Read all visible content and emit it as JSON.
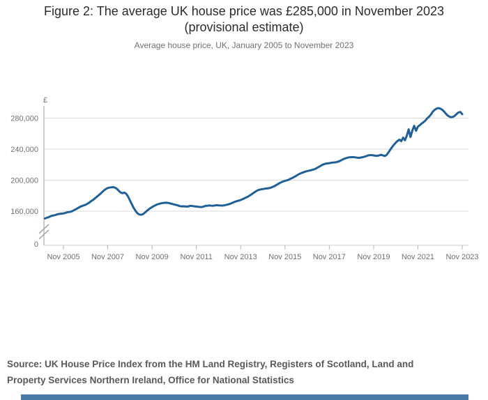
{
  "header": {
    "title_line1": "Figure 2: The average UK house price was £285,000 in November 2023",
    "title_line2": "(provisional estimate)",
    "subtitle": "Average house price, UK, January 2005 to November 2023"
  },
  "source": {
    "line1": "Source: UK House Price Index from the HM Land Registry, Registers of Scotland, Land and",
    "line2": "Property Services Northern Ireland, Office for National Statistics"
  },
  "colors": {
    "line": "#206095",
    "grid": "#d9d9d9",
    "x_axis": "#d2d2d2",
    "y_axis": "#9a9a9a",
    "tick": "#b3b3b3",
    "tick_label": "#707070",
    "title": "#2b2b2b",
    "source_text": "#595959",
    "footer_bar": "#4a7aa6"
  },
  "chart_data": {
    "type": "line",
    "title": "Average house price, UK, January 2005 to November 2023",
    "xlabel": "",
    "ylabel": "£",
    "unit": "GBP thousands",
    "x_frequency": "monthly",
    "x_start": "2005-01",
    "x_end": "2023-11",
    "x_tick_labels": [
      "Nov 2005",
      "Nov 2007",
      "Nov 2009",
      "Nov 2011",
      "Nov 2013",
      "Nov 2015",
      "Nov 2017",
      "Nov 2019",
      "Nov 2021",
      "Nov 2023"
    ],
    "y_tick_labels": [
      "0",
      "160,000",
      "200,000",
      "240,000",
      "280,000"
    ],
    "y_tick_values": [
      0,
      160000,
      200000,
      240000,
      280000
    ],
    "ylim": [
      0,
      295000
    ],
    "axis_break_between": [
      0,
      152000
    ],
    "grid": "horizontal",
    "legend": "none",
    "series": [
      {
        "name": "Average UK house price",
        "values": [
          150.6,
          151.5,
          152.3,
          153.4,
          154.2,
          154.7,
          155.3,
          156.1,
          156.5,
          156.8,
          157.0,
          157.7,
          158.6,
          158.9,
          159.3,
          160.3,
          161.6,
          162.7,
          164.2,
          165.6,
          166.6,
          167.4,
          168.3,
          169.5,
          171.1,
          172.9,
          174.5,
          176.4,
          178.3,
          180.3,
          182.3,
          184.6,
          186.8,
          188.6,
          189.8,
          190.4,
          190.7,
          190.9,
          190.3,
          188.8,
          186.3,
          184.0,
          183.2,
          183.9,
          182.5,
          178.8,
          174.0,
          169.0,
          164.5,
          160.5,
          157.5,
          155.8,
          155.3,
          156.0,
          157.8,
          160.0,
          162.0,
          163.8,
          165.2,
          166.6,
          167.7,
          168.8,
          169.5,
          170.2,
          170.6,
          170.8,
          170.9,
          170.5,
          169.9,
          169.3,
          168.6,
          168.0,
          167.4,
          166.6,
          166.0,
          166.3,
          166.1,
          165.8,
          166.4,
          166.9,
          166.6,
          166.2,
          165.9,
          165.6,
          165.4,
          165.3,
          165.9,
          166.8,
          166.9,
          167.4,
          167.1,
          167.0,
          167.3,
          167.7,
          167.5,
          167.3,
          167.2,
          167.5,
          168.0,
          168.5,
          169.3,
          170.2,
          171.2,
          172.2,
          173.0,
          173.6,
          174.4,
          175.4,
          176.5,
          177.7,
          178.8,
          180.3,
          181.9,
          183.6,
          185.2,
          186.6,
          187.5,
          188.1,
          188.5,
          188.9,
          189.2,
          189.6,
          190.0,
          190.9,
          192.0,
          193.3,
          194.7,
          196.1,
          197.3,
          198.3,
          199.0,
          199.7,
          200.5,
          201.8,
          202.8,
          204.2,
          205.4,
          207.0,
          208.2,
          209.3,
          210.2,
          211.0,
          211.6,
          212.2,
          212.8,
          213.4,
          214.1,
          215.3,
          216.6,
          218.0,
          219.4,
          220.5,
          221.2,
          221.6,
          221.9,
          222.4,
          222.7,
          222.9,
          223.3,
          224.1,
          225.0,
          226.3,
          227.5,
          228.3,
          229.0,
          229.5,
          229.7,
          229.7,
          229.4,
          229.0,
          228.8,
          229.1,
          229.6,
          230.1,
          230.9,
          231.9,
          232.3,
          232.3,
          231.9,
          231.5,
          231.4,
          231.9,
          232.7,
          232.0,
          231.1,
          232.4,
          235.6,
          239.1,
          242.6,
          245.6,
          248.4,
          250.6,
          252.2,
          250.3,
          254.9,
          251.4,
          257.6,
          265.5,
          255.6,
          264.0,
          270.1,
          263.7,
          268.9,
          270.8,
          272.9,
          274.7,
          276.7,
          279.6,
          281.6,
          284.5,
          288.1,
          290.6,
          292.1,
          292.9,
          292.4,
          291.1,
          289.0,
          286.2,
          283.6,
          282.0,
          281.2,
          281.6,
          283.1,
          285.4,
          287.4,
          287.9,
          285.1
        ]
      }
    ]
  }
}
